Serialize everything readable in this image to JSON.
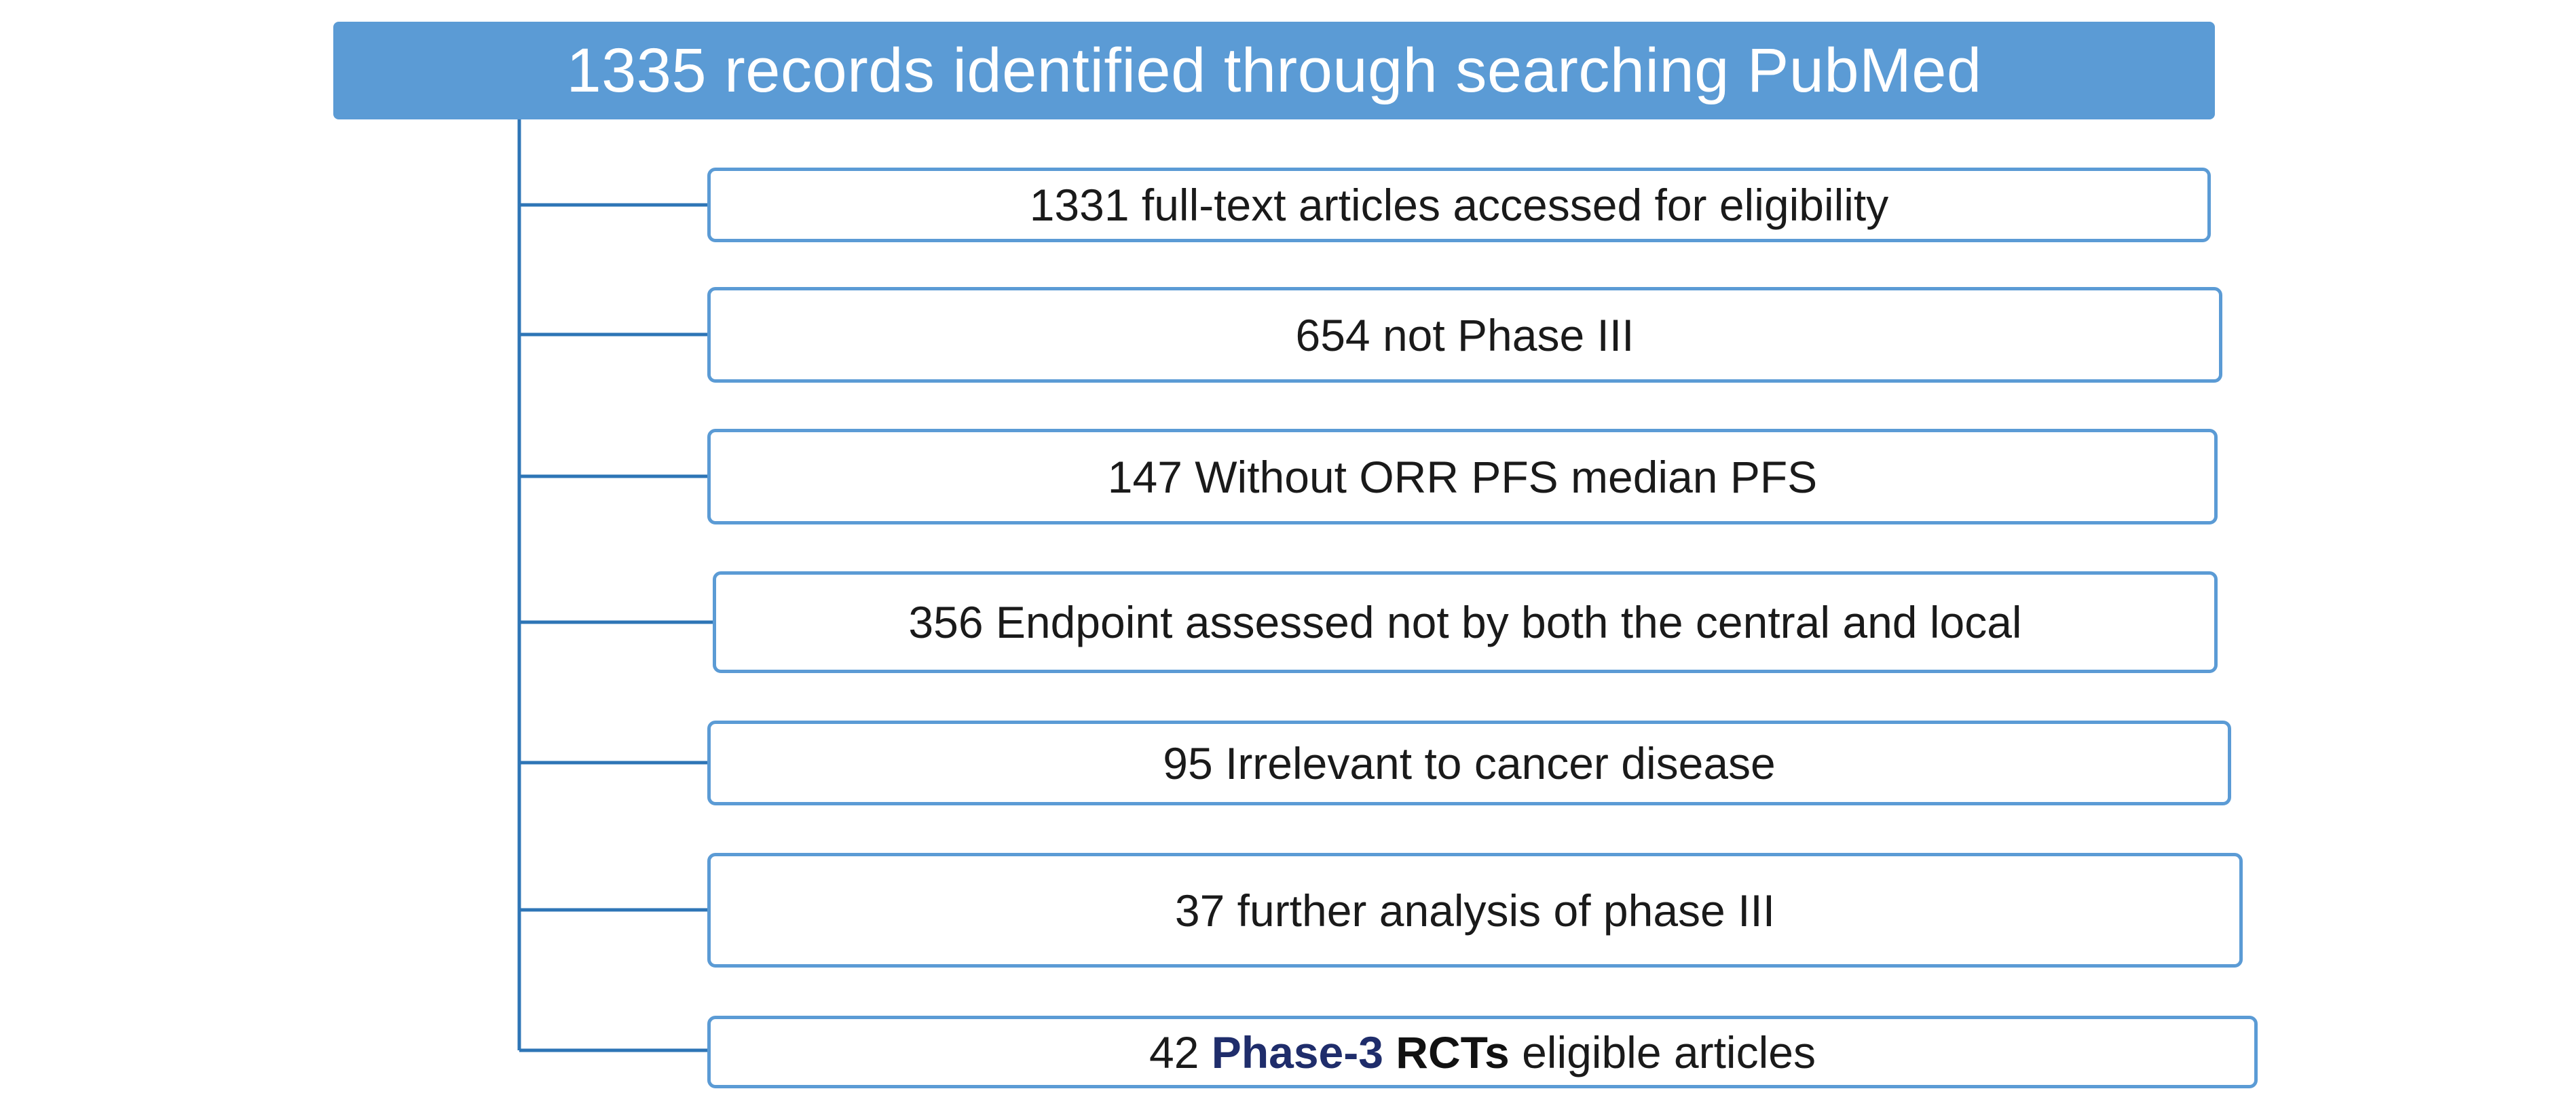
{
  "diagram": {
    "header": "1335 records identified through searching PubMed",
    "items": [
      "1331 full-text articles accessed for eligibility",
      "654 not Phase III",
      "147 Without ORR PFS median PFS",
      "356 Endpoint assessed not by both the central and local",
      "95 Irrelevant to cancer disease",
      "37 further analysis of phase III"
    ],
    "final_item": {
      "prefix": "42 ",
      "highlight_blue": "Phase-3",
      "highlight_bold": " RCTs",
      "suffix": " eligible articles"
    }
  },
  "colors": {
    "header_fill": "#5b9bd5",
    "box_border": "#5b9bd5",
    "connector": "#2e75b6",
    "highlight_blue": "#1f2d6b"
  }
}
